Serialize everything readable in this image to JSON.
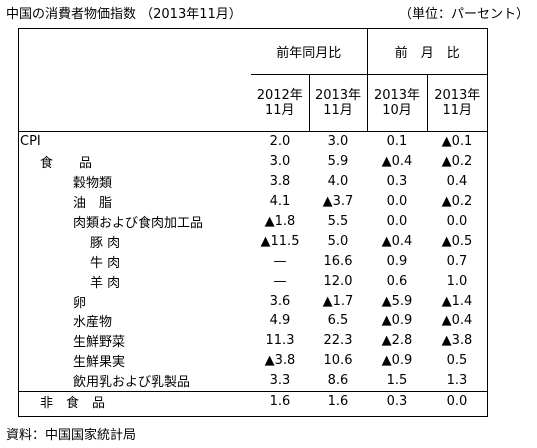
{
  "title": "中国の消費者物価指数 （2013年11月）",
  "unit": "（単位：パーセント）",
  "source": "資料：中国国家統計局",
  "headers": {
    "group1": "前年同月比",
    "group2": "前　月　比",
    "col1": [
      "2012年",
      "11月"
    ],
    "col2": [
      "2013年",
      "11月"
    ],
    "col3": [
      "2013年",
      "10月"
    ],
    "col4": [
      "2013年",
      "11月"
    ]
  },
  "rows": [
    {
      "label": "CPI",
      "level": 0,
      "v": [
        "2.0",
        "3.0",
        "0.1",
        "▲0.1"
      ]
    },
    {
      "label": "食　　品",
      "level": 1,
      "v": [
        "3.0",
        "5.9",
        "▲0.4",
        "▲0.2"
      ]
    },
    {
      "label": "穀物類",
      "level": 2,
      "v": [
        "3.8",
        "4.0",
        "0.3",
        "0.4"
      ]
    },
    {
      "label": "油　脂",
      "level": 2,
      "v": [
        "4.1",
        "▲3.7",
        "0.0",
        "▲0.2"
      ]
    },
    {
      "label": "肉類および食肉加工品",
      "level": 2,
      "v": [
        "▲1.8",
        "5.5",
        "0.0",
        "0.0"
      ]
    },
    {
      "label": "豚 肉",
      "level": 3,
      "v": [
        "▲11.5",
        "5.0",
        "▲0.4",
        "▲0.5"
      ]
    },
    {
      "label": "牛 肉",
      "level": 3,
      "v": [
        "—",
        "16.6",
        "0.9",
        "0.7"
      ]
    },
    {
      "label": "羊 肉",
      "level": 3,
      "v": [
        "—",
        "12.0",
        "0.6",
        "1.0"
      ]
    },
    {
      "label": "卵",
      "level": 2,
      "v": [
        "3.6",
        "▲1.7",
        "▲5.9",
        "▲1.4"
      ]
    },
    {
      "label": "水産物",
      "level": 2,
      "v": [
        "4.9",
        "6.5",
        "▲0.9",
        "▲0.4"
      ]
    },
    {
      "label": "生鮮野菜",
      "level": 2,
      "v": [
        "11.3",
        "22.3",
        "▲2.8",
        "▲3.8"
      ]
    },
    {
      "label": "生鮮果実",
      "level": 2,
      "v": [
        "▲3.8",
        "10.6",
        "▲0.9",
        "0.5"
      ]
    },
    {
      "label": "飲用乳および乳製品",
      "level": 2,
      "v": [
        "3.3",
        "8.6",
        "1.5",
        "1.3"
      ]
    },
    {
      "label": "非　食　品",
      "level": 1,
      "v": [
        "1.6",
        "1.6",
        "0.3",
        "0.0"
      ]
    }
  ]
}
